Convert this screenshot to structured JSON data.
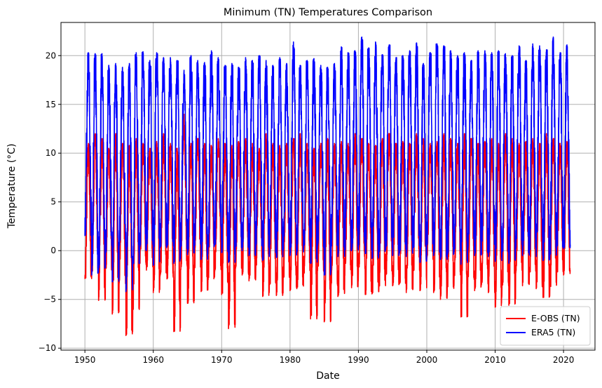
{
  "chart_data": {
    "type": "line",
    "title": "Minimum (TN) Temperatures Comparison",
    "xlabel": "Date",
    "ylabel": "Temperature (°C)",
    "xlim": [
      1946.5,
      2024.6
    ],
    "ylim": [
      -10.2,
      23.4
    ],
    "xticks": [
      1950,
      1960,
      1970,
      1980,
      1990,
      2000,
      2010,
      2020
    ],
    "xtick_labels": [
      "1950",
      "1960",
      "1970",
      "1980",
      "1990",
      "2000",
      "2010",
      "2020"
    ],
    "yticks": [
      -10,
      -5,
      0,
      5,
      10,
      15,
      20
    ],
    "ytick_labels": [
      "−10",
      "−5",
      "0",
      "5",
      "10",
      "15",
      "20"
    ],
    "grid": true,
    "legend_position": "lower-right",
    "x_range_data": [
      1950.0,
      2021.0
    ],
    "series": [
      {
        "name": "E-OBS (TN)",
        "color": "#ff0000",
        "annual_min": [
          -2.9,
          -2.4,
          -5.1,
          -2.0,
          -6.5,
          -3.5,
          -8.7,
          -6.1,
          -1.5,
          -2.0,
          -4.3,
          -2.6,
          -2.9,
          -8.3,
          -2.0,
          -5.4,
          -1.8,
          -4.2,
          -3.0,
          -2.1,
          -4.5,
          -8.0,
          -1.9,
          -2.5,
          -3.1,
          -1.6,
          -4.7,
          -3.5,
          -4.6,
          -2.8,
          -4.1,
          -3.9,
          -2.4,
          -7.0,
          -2.2,
          -7.3,
          -3.6,
          -4.7,
          -2.6,
          -3.8,
          -2.0,
          -4.5,
          -4.4,
          -3.7,
          -2.5,
          -3.6,
          -3.4,
          -4.3,
          -2.2,
          -4.1,
          -1.0,
          -4.3,
          -5.0,
          -3.9,
          -2.6,
          -6.8,
          -3.1,
          -4.1,
          -3.5,
          -4.3,
          -5.8,
          -3.7,
          -5.6,
          -2.4,
          -3.6,
          -2.2,
          -3.9,
          -4.8,
          -3.7,
          -2.3,
          -2.5
        ],
        "annual_max": [
          11.0,
          12.0,
          11.5,
          10.5,
          12.0,
          11.0,
          10.8,
          11.5,
          11.0,
          10.5,
          11.2,
          12.0,
          11.0,
          10.5,
          14.0,
          11.0,
          11.5,
          11.0,
          10.8,
          11.5,
          11.0,
          10.8,
          11.2,
          11.5,
          11.0,
          10.5,
          12.0,
          11.0,
          10.8,
          11.0,
          11.5,
          12.0,
          11.0,
          10.5,
          11.0,
          11.5,
          11.0,
          11.2,
          11.0,
          12.0,
          11.5,
          11.0,
          10.8,
          11.5,
          12.0,
          11.0,
          11.2,
          11.0,
          12.0,
          11.5,
          11.0,
          11.2,
          12.0,
          11.5,
          11.0,
          12.0,
          11.5,
          11.0,
          11.2,
          11.5,
          11.0,
          12.0,
          11.5,
          11.0,
          11.2,
          11.5,
          11.0,
          12.0,
          11.5,
          11.0,
          11.2
        ]
      },
      {
        "name": "ERA5 (TN)",
        "color": "#0000ff",
        "annual_min": [
          1.5,
          -2.5,
          -1.8,
          -0.3,
          -3.2,
          0.2,
          -4.2,
          -1.4,
          0.0,
          0.5,
          -1.5,
          0.3,
          0.4,
          -1.3,
          0.2,
          -0.4,
          0.5,
          -0.9,
          0.4,
          0.6,
          -0.2,
          -1.2,
          0.3,
          0.0,
          -0.5,
          0.4,
          -1.0,
          -0.3,
          -0.7,
          0.0,
          -0.5,
          -0.2,
          0.3,
          -1.3,
          0.2,
          -2.5,
          0.1,
          -0.6,
          -0.2,
          0.0,
          0.5,
          -0.3,
          -0.8,
          -0.1,
          0.3,
          -0.5,
          -0.2,
          -0.6,
          0.3,
          -1.2,
          0.6,
          -0.5,
          -0.9,
          -0.4,
          -0.1,
          -1.4,
          0.0,
          -0.5,
          -0.4,
          -0.6,
          -1.1,
          -0.3,
          -1.3,
          0.2,
          -0.5,
          0.1,
          -0.6,
          -1.0,
          -0.5,
          0.3,
          0.2
        ],
        "annual_max": [
          20.3,
          20.2,
          20.2,
          19.0,
          19.2,
          18.8,
          19.2,
          20.3,
          20.4,
          19.5,
          20.3,
          19.8,
          19.8,
          19.5,
          18.5,
          20.0,
          19.5,
          19.3,
          20.5,
          19.8,
          19.0,
          19.2,
          18.8,
          19.8,
          19.5,
          20.0,
          19.5,
          19.0,
          19.8,
          19.2,
          21.4,
          19.0,
          19.5,
          19.7,
          19.0,
          18.8,
          19.2,
          20.9,
          20.3,
          20.5,
          21.9,
          20.8,
          21.4,
          20.1,
          21.1,
          19.8,
          20.0,
          20.5,
          21.3,
          19.2,
          20.3,
          21.2,
          21.0,
          20.5,
          20.0,
          20.3,
          19.5,
          20.5,
          20.5,
          20.3,
          20.5,
          20.2,
          20.0,
          21.0,
          19.5,
          21.2,
          21.0,
          20.6,
          21.9,
          20.3,
          21.1
        ]
      }
    ]
  }
}
